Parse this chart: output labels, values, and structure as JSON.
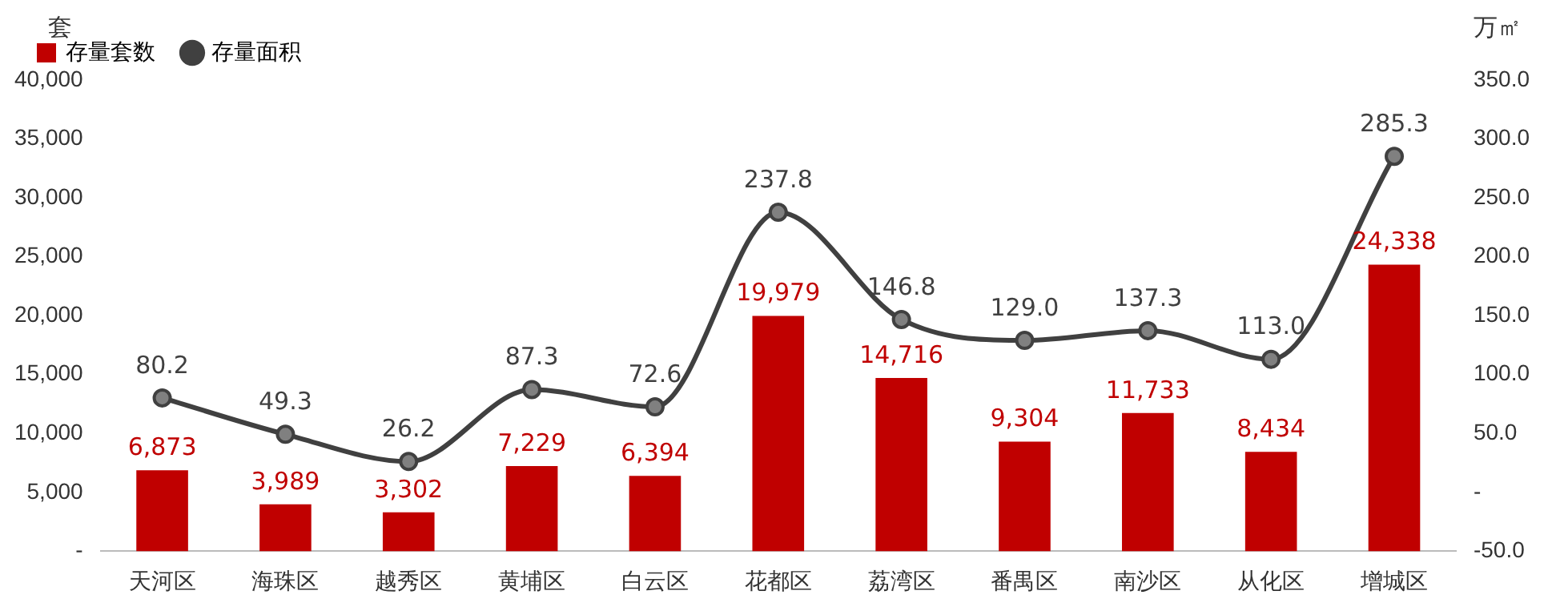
{
  "chart_data": {
    "type": "bar",
    "ylabel": "套",
    "y2label": "万㎡",
    "categories": [
      "天河区",
      "海珠区",
      "越秀区",
      "黄埔区",
      "白云区",
      "花都区",
      "荔湾区",
      "番禺区",
      "南沙区",
      "从化区",
      "增城区"
    ],
    "series": [
      {
        "name": "存量套数",
        "color": "#c00000",
        "values": [
          6873,
          3989,
          3302,
          7229,
          6394,
          19979,
          14716,
          9304,
          11733,
          8434,
          24338
        ],
        "value_labels": [
          "6,873",
          "3,989",
          "3,302",
          "7,229",
          "6,394",
          "19,979",
          "14,716",
          "9,304",
          "11,733",
          "8,434",
          "24,338"
        ]
      },
      {
        "name": "存量面积",
        "type": "line",
        "axis": "y2",
        "color": "#404040",
        "values": [
          80.2,
          49.3,
          26.2,
          87.3,
          72.6,
          237.8,
          146.8,
          129.0,
          137.3,
          113.0,
          285.3
        ],
        "value_labels": [
          "80.2",
          "49.3",
          "26.2",
          "87.3",
          "72.6",
          "237.8",
          "146.8",
          "129.0",
          "137.3",
          "113.0",
          "285.3"
        ]
      }
    ],
    "ylim": [
      0,
      40000
    ],
    "yticks": [
      {
        "value": 0,
        "label": "-"
      },
      {
        "value": 5000,
        "label": "5,000"
      },
      {
        "value": 10000,
        "label": "10,000"
      },
      {
        "value": 15000,
        "label": "15,000"
      },
      {
        "value": 20000,
        "label": "20,000"
      },
      {
        "value": 25000,
        "label": "25,000"
      },
      {
        "value": 30000,
        "label": "30,000"
      },
      {
        "value": 35000,
        "label": "35,000"
      },
      {
        "value": 40000,
        "label": "40,000"
      }
    ],
    "y2lim": [
      -50,
      350
    ],
    "y2ticks": [
      {
        "value": -50,
        "label": "-50.0"
      },
      {
        "value": 0,
        "label": "-"
      },
      {
        "value": 50,
        "label": "50.0"
      },
      {
        "value": 100,
        "label": "100.0"
      },
      {
        "value": 150,
        "label": "150.0"
      },
      {
        "value": 200,
        "label": "200.0"
      },
      {
        "value": 250,
        "label": "250.0"
      },
      {
        "value": 300,
        "label": "300.0"
      },
      {
        "value": 350,
        "label": "350.0"
      }
    ],
    "grid": false,
    "legend": "top left",
    "marker": "circle",
    "line_style": "solid"
  }
}
